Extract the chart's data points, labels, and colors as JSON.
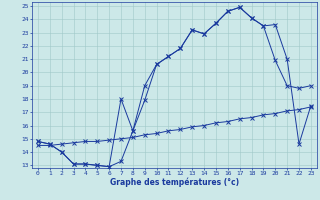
{
  "xlabel": "Graphe des températures (°c)",
  "background_color": "#cce8e8",
  "grid_color": "#a0c8c8",
  "line_color": "#1a3a9e",
  "xlim": [
    -0.5,
    23.5
  ],
  "ylim": [
    12.8,
    25.3
  ],
  "yticks": [
    13,
    14,
    15,
    16,
    17,
    18,
    19,
    20,
    21,
    22,
    23,
    24,
    25
  ],
  "xticks": [
    0,
    1,
    2,
    3,
    4,
    5,
    6,
    7,
    8,
    9,
    10,
    11,
    12,
    13,
    14,
    15,
    16,
    17,
    18,
    19,
    20,
    21,
    22,
    23
  ],
  "line1_x": [
    0,
    1,
    2,
    3,
    4,
    5,
    6,
    7,
    8,
    9,
    10,
    11,
    12,
    13,
    14,
    15,
    16,
    17,
    18,
    19,
    20,
    21,
    22,
    23
  ],
  "line1_y": [
    14.8,
    14.6,
    14.0,
    13.1,
    13.1,
    13.0,
    12.9,
    13.3,
    15.6,
    17.9,
    20.6,
    21.2,
    21.8,
    23.2,
    22.9,
    23.7,
    24.6,
    24.9,
    24.1,
    23.5,
    20.9,
    19.0,
    18.8,
    19.0
  ],
  "line2_x": [
    0,
    1,
    2,
    3,
    4,
    5,
    6,
    7,
    8,
    9,
    10,
    11,
    12,
    13,
    14,
    15,
    16,
    17,
    18,
    19,
    20,
    21,
    22,
    23
  ],
  "line2_y": [
    14.8,
    14.6,
    14.0,
    13.1,
    13.1,
    13.0,
    12.9,
    18.0,
    15.6,
    19.0,
    20.6,
    21.2,
    21.8,
    23.2,
    22.9,
    23.7,
    24.6,
    24.9,
    24.1,
    23.5,
    23.6,
    21.0,
    14.6,
    17.5
  ],
  "line3_x": [
    0,
    1,
    2,
    3,
    4,
    5,
    6,
    7,
    8,
    9,
    10,
    11,
    12,
    13,
    14,
    15,
    16,
    17,
    18,
    19,
    20,
    21,
    22,
    23
  ],
  "line3_y": [
    14.5,
    14.5,
    14.6,
    14.7,
    14.8,
    14.8,
    14.9,
    15.0,
    15.1,
    15.3,
    15.4,
    15.6,
    15.7,
    15.9,
    16.0,
    16.2,
    16.3,
    16.5,
    16.6,
    16.8,
    16.9,
    17.1,
    17.2,
    17.4
  ]
}
